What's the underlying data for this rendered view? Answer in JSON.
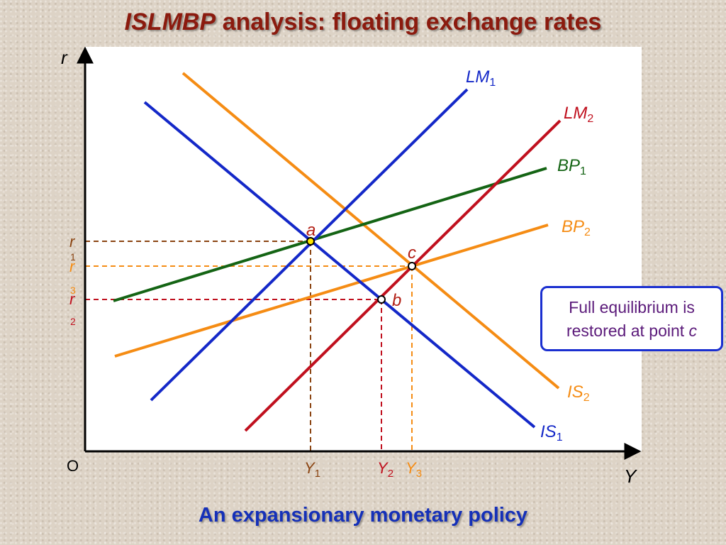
{
  "title": {
    "emphasis": "ISLMBP",
    "rest": " analysis: floating exchange rates"
  },
  "footer": "An expansionary monetary policy",
  "note": {
    "line1": "Full equilibrium is",
    "line2_prefix": "restored at point ",
    "line2_point": "c"
  },
  "axes": {
    "y_label": "r",
    "x_label": "Y",
    "origin_label": "O"
  },
  "colors": {
    "blue": "#1428c8",
    "red": "#c0101e",
    "green": "#146414",
    "orange": "#f58c14",
    "brown": "#8b4513",
    "text_red": "#b21e14"
  },
  "curves": {
    "lm1": {
      "name": "LM",
      "sub": "1"
    },
    "lm2": {
      "name": "LM",
      "sub": "2"
    },
    "bp1": {
      "name": "BP",
      "sub": "1"
    },
    "bp2": {
      "name": "BP",
      "sub": "2"
    },
    "is1": {
      "name": "IS",
      "sub": "1"
    },
    "is2": {
      "name": "IS",
      "sub": "2"
    }
  },
  "points": {
    "a": "a",
    "b": "b",
    "c": "c"
  },
  "r_labels": {
    "r1": {
      "main": "r",
      "sub": "1"
    },
    "r3": {
      "main": "r",
      "sub": "3"
    },
    "r2": {
      "main": "r",
      "sub": "2"
    }
  },
  "y_labels": {
    "y1": {
      "main": "Y",
      "sub": "1"
    },
    "y2": {
      "main": "Y",
      "sub": "2"
    },
    "y3": {
      "main": "Y",
      "sub": "3"
    }
  }
}
